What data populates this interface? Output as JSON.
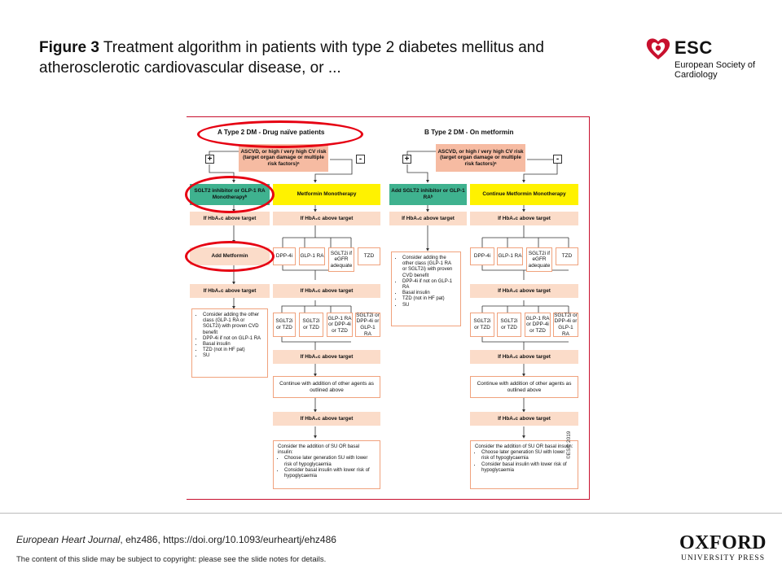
{
  "slide": {
    "title_bold": "Figure 3",
    "title_rest": " Treatment  algorithm  in  patients  with  type  2  diabetes mellitus  and  atherosclerotic  cardiovascular  disease,  or  ...",
    "publisher_logo": {
      "name": "ESC",
      "subtitle": "European Society of Cardiology",
      "color": "#c8102e"
    },
    "citation_journal": "European Heart Journal",
    "citation_rest": ", ehz486, https://doi.org/10.1093/eurheartj/ehz486",
    "notice": "The content of this slide may be subject to copyright: please see the slide notes for details.",
    "oxford_line1": "OXFORD",
    "oxford_line2": "UNIVERSITY PRESS"
  },
  "diagram": {
    "copyright": "©ESC 2019",
    "colors": {
      "highlight": "#e60012",
      "green": "#3fb28f",
      "yellow": "#fff200",
      "peach": "#fbdcc9",
      "salmon": "#f6bba2",
      "border": "#f0a27d"
    },
    "A": {
      "header": "A  Type 2 DM - Drug naïve patients",
      "risk": "ASCVD, or high / very high CV risk (target organ damage or multiple risk factors)ᵃ",
      "plus": "+",
      "minus": "-",
      "left_start": "SGLT2 inhibitor or GLP-1 RA Monotherapyᵇ",
      "right_start": "Metformin Monotherapy",
      "left_hba1c_1": "If HbA₁c above target",
      "right_hba1c_1": "If HbA₁c above target",
      "add_metformin": "Add Metformin",
      "options1": [
        "DPP-4i",
        "GLP-1 RA",
        "SGLT2i if eGFR adequate",
        "TZD"
      ],
      "left_hba1c_2": "If HbA₁c above target",
      "right_hba1c_2": "If HbA₁c above target",
      "left_list": [
        "Consider adding the other class (GLP-1 RA or SGLT2i) with proven CVD benefit",
        "DPP-4i if not on GLP-1 RA",
        "Basal insulin",
        "TZD (not in HF pat)",
        "SU"
      ],
      "options2": [
        "SGLT2i or TZD",
        "SGLT2i or TZD",
        "GLP-1 RA or DPP-4i or TZD",
        "SGLT2i or DPP-4i or GLP-1 RA"
      ],
      "right_hba1c_3": "If HbA₁c above target",
      "continue": "Continue with addition of other agents as outlined above",
      "right_hba1c_4": "If HbA₁c above target",
      "final_intro": "Consider the addition of SU OR basal insulin:",
      "final_list": [
        "Choose later generation SU with lower risk of hypoglycaemia",
        "Consider basal insulin with lower risk of hypoglycaemia"
      ]
    },
    "B": {
      "header": "B  Type 2 DM - On metformin",
      "risk": "ASCVD, or high / very high CV risk (target organ damage or multiple risk factors)ᵃ",
      "plus": "+",
      "minus": "-",
      "left_start": "Add SGLT2 inhibitor or GLP-1 RAᵇ",
      "right_start": "Continue Metformin Monotherapy",
      "left_hba1c_1": "If HbA₁c above target",
      "right_hba1c_1": "If HbA₁c above target",
      "left_list": [
        "Consider adding the other class (GLP-1 RA or SGLT2i) with proven CVD benefit",
        "DPP-4i if not on GLP-1 RA",
        "Basal insulin",
        "TZD (not in HF pat)",
        "SU"
      ],
      "options1": [
        "DPP-4i",
        "GLP-1 RA",
        "SGLT2i if eGFR adequate",
        "TZD"
      ],
      "right_hba1c_2": "If HbA₁c above target",
      "options2": [
        "SGLT2i or TZD",
        "SGLT2i or TZD",
        "GLP-1 RA or DPP-4i or TZD",
        "SGLT2i or DPP-4i or GLP-1 RA"
      ],
      "right_hba1c_3": "If HbA₁c above target",
      "continue": "Continue with addition of other agents as outlined above",
      "right_hba1c_4": "If HbA₁c above target",
      "final_intro": "Consider the addition of SU OR basal insulin:",
      "final_list": [
        "Choose later generation SU with lower risk of hypoglycaemia",
        "Consider basal insulin with lower risk of hypoglycaemia"
      ]
    }
  }
}
